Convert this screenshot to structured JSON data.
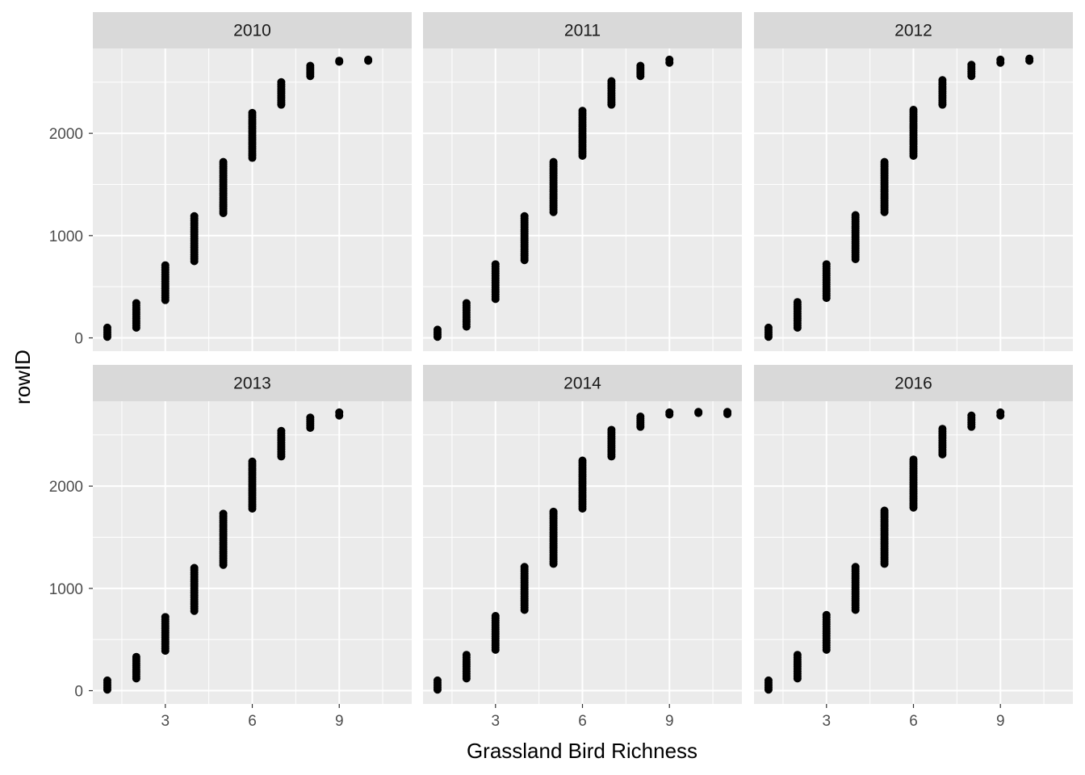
{
  "chart_data": {
    "type": "scatter",
    "facet_by": "year",
    "xlabel": "Grassland Bird Richness",
    "ylabel": "rowID",
    "x_ticks": [
      3,
      6,
      9
    ],
    "y_ticks": [
      0,
      1000,
      2000
    ],
    "xlim": [
      0.5,
      11.5
    ],
    "ylim": [
      -130,
      2830
    ],
    "colors": {
      "panel_bg": "#ebebeb",
      "strip_bg": "#d9d9d9",
      "grid": "#ffffff",
      "point": "#000000",
      "tick_mark": "#333333"
    },
    "panels": [
      {
        "title": "2010",
        "points": [
          {
            "x": 1,
            "y_min": 10,
            "y_max": 100
          },
          {
            "x": 2,
            "y_min": 100,
            "y_max": 340
          },
          {
            "x": 3,
            "y_min": 370,
            "y_max": 710
          },
          {
            "x": 4,
            "y_min": 750,
            "y_max": 1190
          },
          {
            "x": 5,
            "y_min": 1220,
            "y_max": 1720
          },
          {
            "x": 6,
            "y_min": 1760,
            "y_max": 2200
          },
          {
            "x": 7,
            "y_min": 2280,
            "y_max": 2500
          },
          {
            "x": 8,
            "y_min": 2560,
            "y_max": 2660
          },
          {
            "x": 9,
            "y_min": 2700,
            "y_max": 2710
          },
          {
            "x": 10,
            "y_min": 2710,
            "y_max": 2720
          }
        ]
      },
      {
        "title": "2011",
        "points": [
          {
            "x": 1,
            "y_min": 10,
            "y_max": 80
          },
          {
            "x": 2,
            "y_min": 110,
            "y_max": 340
          },
          {
            "x": 3,
            "y_min": 380,
            "y_max": 720
          },
          {
            "x": 4,
            "y_min": 760,
            "y_max": 1190
          },
          {
            "x": 5,
            "y_min": 1230,
            "y_max": 1720
          },
          {
            "x": 6,
            "y_min": 1780,
            "y_max": 2220
          },
          {
            "x": 7,
            "y_min": 2280,
            "y_max": 2510
          },
          {
            "x": 8,
            "y_min": 2560,
            "y_max": 2660
          },
          {
            "x": 9,
            "y_min": 2690,
            "y_max": 2720
          }
        ]
      },
      {
        "title": "2012",
        "points": [
          {
            "x": 1,
            "y_min": 10,
            "y_max": 100
          },
          {
            "x": 2,
            "y_min": 100,
            "y_max": 350
          },
          {
            "x": 3,
            "y_min": 390,
            "y_max": 720
          },
          {
            "x": 4,
            "y_min": 770,
            "y_max": 1200
          },
          {
            "x": 5,
            "y_min": 1230,
            "y_max": 1720
          },
          {
            "x": 6,
            "y_min": 1780,
            "y_max": 2230
          },
          {
            "x": 7,
            "y_min": 2280,
            "y_max": 2520
          },
          {
            "x": 8,
            "y_min": 2560,
            "y_max": 2670
          },
          {
            "x": 9,
            "y_min": 2690,
            "y_max": 2720
          },
          {
            "x": 10,
            "y_min": 2710,
            "y_max": 2730
          }
        ]
      },
      {
        "title": "2013",
        "points": [
          {
            "x": 1,
            "y_min": 10,
            "y_max": 100
          },
          {
            "x": 2,
            "y_min": 120,
            "y_max": 330
          },
          {
            "x": 3,
            "y_min": 390,
            "y_max": 720
          },
          {
            "x": 4,
            "y_min": 780,
            "y_max": 1200
          },
          {
            "x": 5,
            "y_min": 1230,
            "y_max": 1730
          },
          {
            "x": 6,
            "y_min": 1780,
            "y_max": 2240
          },
          {
            "x": 7,
            "y_min": 2290,
            "y_max": 2540
          },
          {
            "x": 8,
            "y_min": 2570,
            "y_max": 2670
          },
          {
            "x": 9,
            "y_min": 2690,
            "y_max": 2720
          }
        ]
      },
      {
        "title": "2014",
        "points": [
          {
            "x": 1,
            "y_min": 10,
            "y_max": 100
          },
          {
            "x": 2,
            "y_min": 120,
            "y_max": 350
          },
          {
            "x": 3,
            "y_min": 400,
            "y_max": 730
          },
          {
            "x": 4,
            "y_min": 790,
            "y_max": 1210
          },
          {
            "x": 5,
            "y_min": 1240,
            "y_max": 1750
          },
          {
            "x": 6,
            "y_min": 1780,
            "y_max": 2250
          },
          {
            "x": 7,
            "y_min": 2290,
            "y_max": 2550
          },
          {
            "x": 8,
            "y_min": 2580,
            "y_max": 2680
          },
          {
            "x": 9,
            "y_min": 2700,
            "y_max": 2720
          },
          {
            "x": 10,
            "y_min": 2715,
            "y_max": 2725
          },
          {
            "x": 11,
            "y_min": 2705,
            "y_max": 2725
          }
        ]
      },
      {
        "title": "2016",
        "points": [
          {
            "x": 1,
            "y_min": 10,
            "y_max": 100
          },
          {
            "x": 2,
            "y_min": 120,
            "y_max": 350
          },
          {
            "x": 3,
            "y_min": 400,
            "y_max": 740
          },
          {
            "x": 4,
            "y_min": 790,
            "y_max": 1210
          },
          {
            "x": 5,
            "y_min": 1240,
            "y_max": 1760
          },
          {
            "x": 6,
            "y_min": 1790,
            "y_max": 2260
          },
          {
            "x": 7,
            "y_min": 2310,
            "y_max": 2560
          },
          {
            "x": 8,
            "y_min": 2580,
            "y_max": 2690
          },
          {
            "x": 9,
            "y_min": 2690,
            "y_max": 2720
          }
        ]
      }
    ]
  }
}
